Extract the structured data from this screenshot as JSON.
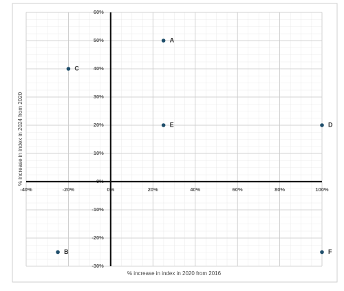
{
  "chart_data": {
    "type": "scatter",
    "x_label": "% increase in index in 2020 from 2016",
    "y_label": "% increase in index in 2024 from 2020",
    "series": [
      {
        "color": "#1f4e6b",
        "labels": [
          "A",
          "B",
          "C",
          "D",
          "E",
          "F"
        ],
        "x": [
          25,
          -25,
          -20,
          100,
          25,
          100
        ],
        "values": [
          50,
          -25,
          40,
          20,
          20,
          -25
        ]
      }
    ],
    "xlim": [
      -40,
      100
    ],
    "ylim": [
      -30,
      60
    ],
    "xticks": [
      {
        "value": -40,
        "label": "-40%"
      },
      {
        "value": -20,
        "label": "-20%"
      },
      {
        "value": 0,
        "label": "0%"
      },
      {
        "value": 20,
        "label": "20%"
      },
      {
        "value": 40,
        "label": "40%"
      },
      {
        "value": 60,
        "label": "60%"
      },
      {
        "value": 80,
        "label": "80%"
      },
      {
        "value": 100,
        "label": "100%"
      }
    ],
    "yticks": [
      {
        "value": -30,
        "label": "-30%"
      },
      {
        "value": -20,
        "label": "-20%"
      },
      {
        "value": -10,
        "label": "-10%"
      },
      {
        "value": 0,
        "label": "0%"
      },
      {
        "value": 10,
        "label": "10%"
      },
      {
        "value": 20,
        "label": "20%"
      },
      {
        "value": 30,
        "label": "30%"
      },
      {
        "value": 40,
        "label": "40%"
      },
      {
        "value": 50,
        "label": "50%"
      },
      {
        "value": 60,
        "label": "60%"
      }
    ],
    "grid": true
  }
}
